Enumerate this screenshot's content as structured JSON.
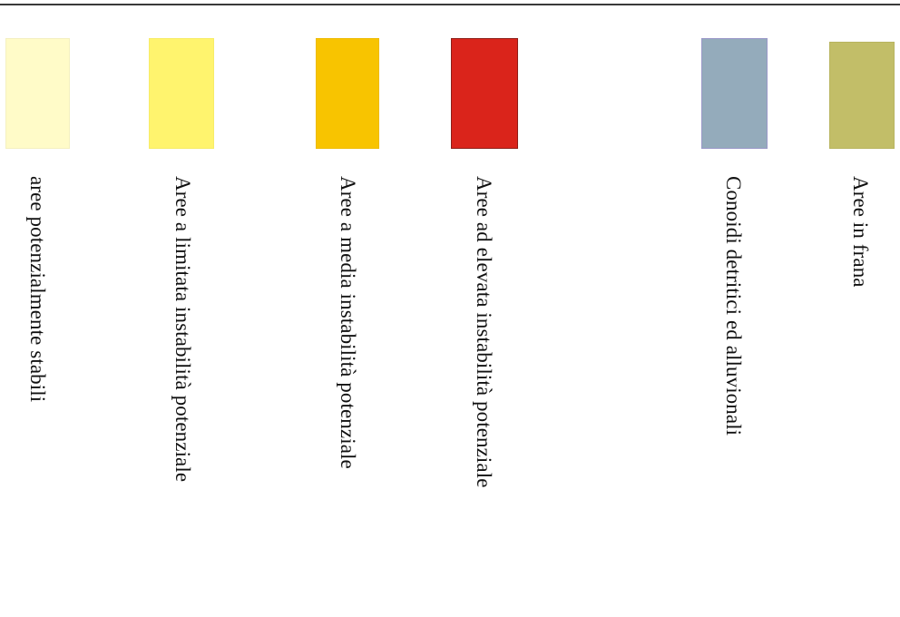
{
  "legend": {
    "items": [
      {
        "label": "aree potenzialmente stabili",
        "color": "#FFFBC8",
        "border": "#F4F0C0"
      },
      {
        "label": "Aree a limitata instabilità potenziale",
        "color": "#FFF46E",
        "border": "#F7EC68"
      },
      {
        "label": "Aree a media instabilità potenziale",
        "color": "#F8C400",
        "border": "#EEBB00"
      },
      {
        "label": "Aree ad elevata instabilità potenziale",
        "color": "#DA241B",
        "border": "#8E1E18"
      },
      {
        "label": "Conoidi detritici ed alluvionali",
        "color": "#94ABBB",
        "border": "#9A98C8"
      },
      {
        "label": "Aree in frana",
        "color": "#C2BE68",
        "border": "#B8B460"
      }
    ]
  }
}
